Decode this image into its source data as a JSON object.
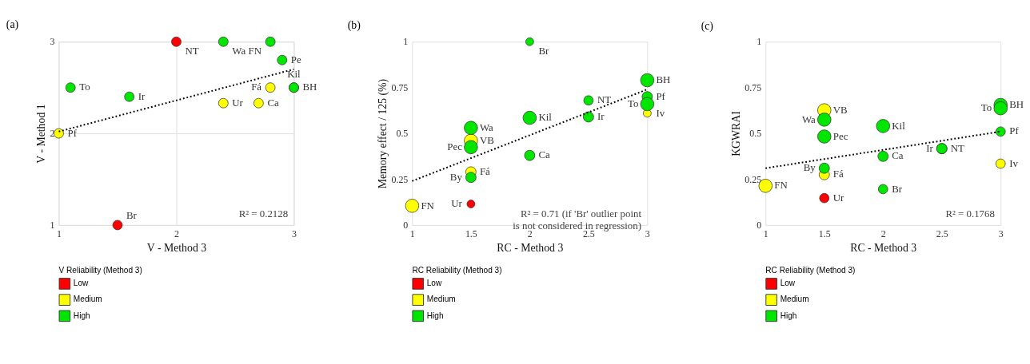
{
  "chart_data": [
    {
      "type": "scatter",
      "title": "(a)",
      "xlabel": "V - Method 3",
      "ylabel": "V - Method 1",
      "legend_title": "V Reliability (Method 3)",
      "legend": "bottom left",
      "grid": true,
      "xlim": [
        1,
        3
      ],
      "ylim": [
        1,
        3
      ],
      "xticks": [
        1,
        2,
        3
      ],
      "yticks": [
        1,
        2,
        3
      ],
      "series": [
        {
          "name": "Low",
          "color": "#ff0000",
          "x": [
            2,
            1.5
          ],
          "values": [
            3,
            1
          ]
        },
        {
          "name": "Medium",
          "color": "#ffff00",
          "x": [
            1,
            2.4,
            2.7,
            2.8
          ],
          "values": [
            2,
            2.33,
            2.33,
            2.5
          ]
        },
        {
          "name": "High",
          "color": "#00e600",
          "x": [
            1.1,
            1.6,
            2.4,
            2.8,
            2.9,
            3,
            3
          ],
          "values": [
            2.5,
            2.4,
            3,
            3,
            2.8,
            2.5,
            2.5
          ]
        },
        {
          "type": "line",
          "color": "#000000",
          "line_style": "dotted",
          "x": [
            1,
            3
          ],
          "values": [
            2.02,
            2.7
          ]
        }
      ],
      "annotations": [
        {
          "text": "NT",
          "x": 2,
          "y": 3
        },
        {
          "text": "Br",
          "x": 1.5,
          "y": 1
        },
        {
          "text": "Pf",
          "x": 1,
          "y": 2
        },
        {
          "text": "Ur",
          "x": 2.4,
          "y": 2.33
        },
        {
          "text": "Ca",
          "x": 2.7,
          "y": 2.33
        },
        {
          "text": "Fá",
          "x": 2.8,
          "y": 2.5
        },
        {
          "text": "To",
          "x": 1.1,
          "y": 2.5
        },
        {
          "text": "Ir",
          "x": 1.6,
          "y": 2.4
        },
        {
          "text": "Wa",
          "x": 2.4,
          "y": 3
        },
        {
          "text": "FN",
          "x": 2.8,
          "y": 3
        },
        {
          "text": "Pe",
          "x": 2.9,
          "y": 2.8
        },
        {
          "text": "BH",
          "x": 3,
          "y": 2.5
        },
        {
          "text": "Kil",
          "x": 3,
          "y": 2.5
        },
        "R² = 0.2128"
      ]
    },
    {
      "type": "bubble",
      "title": "(b)",
      "xlabel": "RC - Method 3",
      "ylabel": "Memory effect / 125 (%)",
      "legend_title": "RC Reliability (Method 3)",
      "legend": "bottom left",
      "xlim": [
        1,
        3
      ],
      "ylim": [
        0,
        1
      ],
      "xticks": [
        1,
        1.5,
        2,
        2.5,
        3
      ],
      "yticks": [
        0,
        0.25,
        0.5,
        0.75,
        1
      ],
      "series": [
        {
          "name": "Low",
          "color": "#ff0000",
          "x": [
            1.5
          ],
          "values": [
            0.115
          ],
          "sizes": [
            0.35
          ]
        },
        {
          "name": "Medium",
          "color": "#ffff00",
          "x": [
            1,
            1.5,
            1.5,
            3
          ],
          "values": [
            0.105,
            0.46,
            0.29,
            0.61
          ],
          "sizes": [
            1,
            1,
            0.6,
            0.35
          ]
        },
        {
          "name": "High",
          "color": "#00e600",
          "x": [
            2,
            3,
            3,
            3,
            2.5,
            2.5,
            2,
            2,
            1.5,
            1.5,
            1.5
          ],
          "values": [
            1,
            0.79,
            0.7,
            0.66,
            0.68,
            0.59,
            0.585,
            0.38,
            0.53,
            0.425,
            0.26
          ],
          "sizes": [
            0.35,
            1,
            0.6,
            1,
            0.5,
            0.6,
            1,
            0.6,
            1,
            1,
            0.6
          ]
        },
        {
          "type": "line",
          "color": "#000000",
          "line_style": "dotted",
          "x": [
            1,
            3
          ],
          "values": [
            0.24,
            0.74
          ]
        }
      ],
      "annotations": [
        {
          "text": "Ur",
          "x": 1.5,
          "y": 0.115
        },
        {
          "text": "FN",
          "x": 1,
          "y": 0.105
        },
        {
          "text": "VB",
          "x": 1.5,
          "y": 0.46
        },
        {
          "text": "Fá",
          "x": 1.5,
          "y": 0.29
        },
        {
          "text": "Iv",
          "x": 3,
          "y": 0.61
        },
        {
          "text": "Br",
          "x": 2,
          "y": 1
        },
        {
          "text": "BH",
          "x": 3,
          "y": 0.79
        },
        {
          "text": "Pf",
          "x": 3,
          "y": 0.7
        },
        {
          "text": "To",
          "x": 3,
          "y": 0.66
        },
        {
          "text": "NT",
          "x": 2.5,
          "y": 0.68
        },
        {
          "text": "Ir",
          "x": 2.5,
          "y": 0.59
        },
        {
          "text": "Kil",
          "x": 2,
          "y": 0.585
        },
        {
          "text": "Ca",
          "x": 2,
          "y": 0.38
        },
        {
          "text": "Wa",
          "x": 1.5,
          "y": 0.53
        },
        {
          "text": "Pec",
          "x": 1.5,
          "y": 0.425
        },
        {
          "text": "By",
          "x": 1.5,
          "y": 0.26
        },
        "R² = 0.71 (if 'Br' outlier point is not considered in regression)"
      ]
    },
    {
      "type": "bubble",
      "title": "(c)",
      "xlabel": "RC - Method 3",
      "ylabel": "KGWRAI",
      "legend_title": "RC Reliability (Method 3)",
      "legend": "bottom left",
      "xlim": [
        1,
        3
      ],
      "ylim": [
        0,
        1
      ],
      "xticks": [
        1,
        1.5,
        2,
        2.5,
        3
      ],
      "yticks": [
        0,
        0.25,
        0.5,
        0.75,
        1
      ],
      "series": [
        {
          "name": "Low",
          "color": "#ff0000",
          "x": [
            1.5
          ],
          "values": [
            0.147
          ],
          "sizes": [
            0.5
          ]
        },
        {
          "name": "Medium",
          "color": "#ffff00",
          "x": [
            1,
            1.5,
            1.5,
            3
          ],
          "values": [
            0.214,
            0.626,
            0.275,
            0.335
          ],
          "sizes": [
            1,
            1,
            0.6,
            0.5
          ]
        },
        {
          "name": "High",
          "color": "#00e600",
          "x": [
            3,
            3,
            3,
            2.5,
            2.5,
            2,
            2,
            2,
            1.5,
            1.5,
            1.5
          ],
          "values": [
            0.655,
            0.637,
            0.51,
            0.417,
            0.417,
            0.54,
            0.375,
            0.196,
            0.575,
            0.483,
            0.31
          ],
          "sizes": [
            1,
            1,
            0.5,
            0.6,
            0.6,
            1,
            0.6,
            0.5,
            1,
            1,
            0.6
          ]
        },
        {
          "type": "line",
          "color": "#000000",
          "line_style": "dotted",
          "x": [
            1,
            3
          ],
          "values": [
            0.31,
            0.51
          ]
        }
      ],
      "annotations": [
        {
          "text": "Ur",
          "x": 1.5,
          "y": 0.147
        },
        {
          "text": "FN",
          "x": 1,
          "y": 0.214
        },
        {
          "text": "VB",
          "x": 1.5,
          "y": 0.626
        },
        {
          "text": "Fá",
          "x": 1.5,
          "y": 0.275
        },
        {
          "text": "Iv",
          "x": 3,
          "y": 0.335
        },
        {
          "text": "BH",
          "x": 3,
          "y": 0.655
        },
        {
          "text": "To",
          "x": 3,
          "y": 0.637
        },
        {
          "text": "Pf",
          "x": 3,
          "y": 0.51
        },
        {
          "text": "NT",
          "x": 2.5,
          "y": 0.417
        },
        {
          "text": "Ir",
          "x": 2.5,
          "y": 0.417
        },
        {
          "text": "Kil",
          "x": 2,
          "y": 0.54
        },
        {
          "text": "Ca",
          "x": 2,
          "y": 0.375
        },
        {
          "text": "Br",
          "x": 2,
          "y": 0.196
        },
        {
          "text": "Wa",
          "x": 1.5,
          "y": 0.575
        },
        {
          "text": "Pec",
          "x": 1.5,
          "y": 0.483
        },
        {
          "text": "By",
          "x": 1.5,
          "y": 0.31
        },
        "R² = 0.1768"
      ]
    }
  ]
}
